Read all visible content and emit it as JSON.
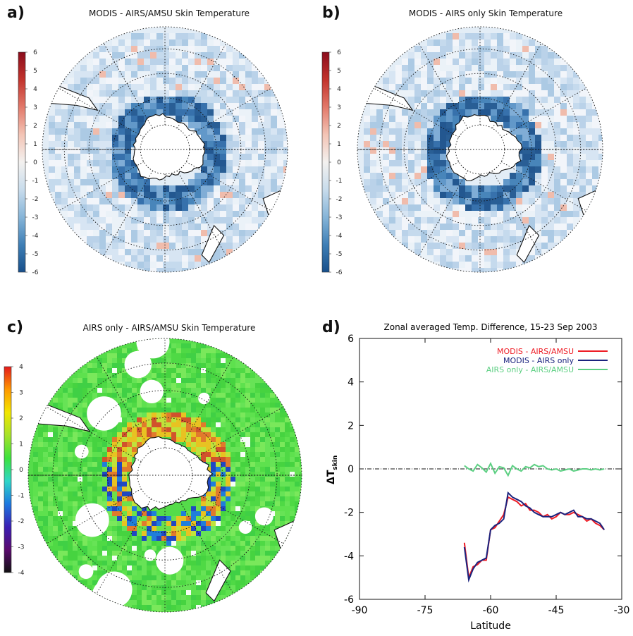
{
  "panels": {
    "a": {
      "label": "a)",
      "title": "MODIS - AIRS/AMSU Skin Temperature",
      "colorbar": {
        "ticks": [
          "6",
          "5",
          "4",
          "3",
          "2",
          "1",
          "0",
          "-1",
          "-2",
          "-3",
          "-4",
          "-5",
          "-6"
        ],
        "palette": [
          "#8b0d1c",
          "#c2332c",
          "#e2796a",
          "#f3c4b5",
          "#f3f1ef",
          "#c8dcec",
          "#86b5d8",
          "#3f7fb6",
          "#184f8a"
        ]
      }
    },
    "b": {
      "label": "b)",
      "title": "MODIS - AIRS only Skin Temperature",
      "colorbar": {
        "ticks": [
          "6",
          "5",
          "4",
          "3",
          "2",
          "1",
          "0",
          "-1",
          "-2",
          "-3",
          "-4",
          "-5",
          "-6"
        ],
        "palette": [
          "#8b0d1c",
          "#c2332c",
          "#e2796a",
          "#f3c4b5",
          "#f3f1ef",
          "#c8dcec",
          "#86b5d8",
          "#3f7fb6",
          "#184f8a"
        ]
      }
    },
    "c": {
      "label": "c)",
      "title": "AIRS only - AIRS/AMSU Skin Temperature",
      "colorbar": {
        "ticks": [
          "4",
          "3",
          "2",
          "1",
          "0",
          "-1",
          "-2",
          "-3",
          "-4"
        ],
        "palette": [
          "#e41a1c",
          "#ff9900",
          "#f2e600",
          "#a6e22a",
          "#3de23d",
          "#2fd6c8",
          "#1d78e0",
          "#3a1fb4",
          "#5a0a6e",
          "#111111"
        ]
      }
    },
    "d": {
      "label": "d)"
    }
  },
  "chart_data": {
    "type": "line",
    "title": "Zonal averaged Temp. Difference, 15-23 Sep 2003",
    "xlabel": "Latitude",
    "ylabel_main": "ΔT",
    "ylabel_sub": "skin",
    "xlim": [
      -90,
      -30
    ],
    "ylim": [
      -6,
      6
    ],
    "xticks": [
      "-90",
      "-75",
      "-60",
      "-45",
      "-30"
    ],
    "xtick_values": [
      -90,
      -75,
      -60,
      -45,
      -30
    ],
    "yticks": [
      "6",
      "4",
      "2",
      "0",
      "-2",
      "-4",
      "-6"
    ],
    "ytick_values": [
      6,
      4,
      2,
      0,
      -2,
      -4,
      -6
    ],
    "zero_line": true,
    "legend_position": "top-right",
    "series": [
      {
        "name": "MODIS - AIRS/AMSU",
        "color": "#ee1c25",
        "x": [
          -66,
          -65,
          -64,
          -63,
          -62,
          -61,
          -60,
          -59,
          -58,
          -57,
          -56,
          -55,
          -54,
          -53,
          -52,
          -51,
          -50,
          -49,
          -48,
          -47,
          -46,
          -45,
          -44,
          -43,
          -42,
          -41,
          -40,
          -39,
          -38,
          -37,
          -36,
          -35,
          -34
        ],
        "y": [
          -3.4,
          -5.0,
          -4.5,
          -4.4,
          -4.2,
          -4.2,
          -2.8,
          -2.7,
          -2.4,
          -2.1,
          -1.3,
          -1.4,
          -1.5,
          -1.7,
          -1.6,
          -1.9,
          -1.9,
          -2.0,
          -2.2,
          -2.1,
          -2.3,
          -2.2,
          -2.0,
          -2.1,
          -2.1,
          -2.0,
          -2.1,
          -2.2,
          -2.4,
          -2.3,
          -2.5,
          -2.6,
          -2.8
        ]
      },
      {
        "name": "MODIS - AIRS only",
        "color": "#1a237e",
        "x": [
          -66,
          -65,
          -64,
          -63,
          -62,
          -61,
          -60,
          -59,
          -58,
          -57,
          -56,
          -55,
          -54,
          -53,
          -52,
          -51,
          -50,
          -49,
          -48,
          -47,
          -46,
          -45,
          -44,
          -43,
          -42,
          -41,
          -40,
          -39,
          -38,
          -37,
          -36,
          -35,
          -34
        ],
        "y": [
          -3.6,
          -5.1,
          -4.6,
          -4.3,
          -4.2,
          -4.1,
          -2.8,
          -2.6,
          -2.5,
          -2.3,
          -1.1,
          -1.3,
          -1.4,
          -1.5,
          -1.7,
          -1.8,
          -2.0,
          -2.1,
          -2.2,
          -2.2,
          -2.2,
          -2.1,
          -2.0,
          -2.1,
          -2.0,
          -1.9,
          -2.2,
          -2.2,
          -2.3,
          -2.3,
          -2.4,
          -2.5,
          -2.8
        ]
      },
      {
        "name": "AIRS only - AIRS/AMSU",
        "color": "#5ccf82",
        "x": [
          -66,
          -65,
          -64,
          -63,
          -62,
          -61,
          -60,
          -59,
          -58,
          -57,
          -56,
          -55,
          -54,
          -53,
          -52,
          -51,
          -50,
          -49,
          -48,
          -47,
          -46,
          -45,
          -44,
          -43,
          -42,
          -41,
          -40,
          -39,
          -38,
          -37,
          -36,
          -35,
          -34
        ],
        "y": [
          0.15,
          0.0,
          -0.1,
          0.2,
          0.05,
          -0.15,
          0.25,
          -0.2,
          0.1,
          0.05,
          -0.3,
          0.15,
          0.0,
          -0.1,
          0.1,
          0.05,
          0.2,
          0.1,
          0.15,
          0.0,
          -0.05,
          0.0,
          -0.1,
          -0.05,
          0.0,
          -0.1,
          -0.05,
          0.0,
          0.0,
          -0.05,
          0.0,
          -0.05,
          0.0
        ]
      }
    ]
  }
}
